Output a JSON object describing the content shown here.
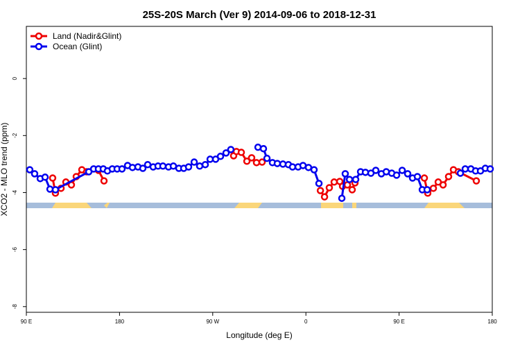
{
  "chart_data": {
    "type": "line",
    "title": "25S-20S March (Ver 9)   2014-09-06 to 2018-12-31",
    "x_label": "Longitude (deg E)",
    "y_label": "XCO2 - MLO trend (ppm)",
    "xlim": [
      90,
      540
    ],
    "ylim": [
      -8.2,
      1.83
    ],
    "xticks": [
      {
        "value": 90,
        "label": "90 E"
      },
      {
        "value": 180,
        "label": "180"
      },
      {
        "value": 270,
        "label": "90 W"
      },
      {
        "value": 360,
        "label": "0"
      },
      {
        "value": 450,
        "label": "90 E"
      },
      {
        "value": 540,
        "label": "180"
      }
    ],
    "yticks": [
      0,
      -2,
      -4,
      -6,
      -8
    ],
    "grid": false,
    "legend": "top-left",
    "series": [
      {
        "name": "Land (Nadir&Glint)",
        "color": "#ee0000",
        "x": [
          115.4,
          118.1,
          123.5,
          128.2,
          133.5,
          138.2,
          143.6,
          148.3,
          159.6,
          165.0,
          null,
          290.2,
          292.9,
          297.6,
          303.0,
          307.6,
          312.3,
          317.7,
          null,
          374.0,
          378.0,
          382.6,
          387.3,
          392.7,
          395.4,
          400.1,
          404.7,
          407.4,
          null,
          474.4,
          477.7,
          483.1,
          487.8,
          492.5,
          497.8,
          502.5,
          507.2,
          524.6
        ],
        "values": [
          -3.49,
          -4.02,
          -3.85,
          -3.63,
          -3.73,
          -3.44,
          -3.2,
          -3.27,
          -3.22,
          -3.59,
          null,
          -2.71,
          -2.56,
          -2.59,
          -2.9,
          -2.78,
          -2.95,
          -2.93,
          null,
          -3.93,
          -4.15,
          -3.83,
          -3.63,
          -3.61,
          -3.78,
          -3.73,
          -3.9,
          -3.66,
          null,
          -3.49,
          -4.02,
          -3.85,
          -3.63,
          -3.73,
          -3.44,
          -3.2,
          -3.27,
          -3.59
        ]
      },
      {
        "name": "Ocean (Glint)",
        "color": "#0000ee",
        "x": [
          93.3,
          98.0,
          103.4,
          108.1,
          112.8,
          118.1,
          150.3,
          155.0,
          159.6,
          164.3,
          168.3,
          173.0,
          177.7,
          182.4,
          187.8,
          192.5,
          197.8,
          202.5,
          207.2,
          212.5,
          217.2,
          221.9,
          227.3,
          232.0,
          237.3,
          242.0,
          246.7,
          252.1,
          257.4,
          262.8,
          267.5,
          272.8,
          277.5,
          282.9,
          287.5,
          null,
          313.7,
          319.0,
          322.4,
          327.7,
          332.4,
          337.8,
          343.1,
          347.1,
          352.5,
          357.2,
          362.5,
          367.9,
          372.6,
          null,
          394.7,
          398.0,
          402.1,
          408.1,
          412.8,
          417.5,
          422.8,
          427.5,
          432.9,
          437.6,
          442.9,
          447.6,
          453.0,
          458.3,
          463.0,
          467.7,
          472.4,
          477.1,
          null,
          509.2,
          513.9,
          519.3,
          523.9,
          528.6,
          533.3,
          538.0
        ],
        "values": [
          -3.2,
          -3.34,
          -3.51,
          -3.46,
          -3.88,
          -3.9,
          -3.27,
          -3.17,
          -3.17,
          -3.17,
          -3.24,
          -3.17,
          -3.17,
          -3.17,
          -3.05,
          -3.12,
          -3.1,
          -3.15,
          -3.02,
          -3.1,
          -3.07,
          -3.07,
          -3.1,
          -3.07,
          -3.15,
          -3.15,
          -3.1,
          -2.93,
          -3.07,
          -3.02,
          -2.83,
          -2.83,
          -2.73,
          -2.61,
          -2.49,
          null,
          -2.41,
          -2.46,
          -2.8,
          -2.95,
          -2.98,
          -3.0,
          -3.02,
          -3.1,
          -3.1,
          -3.05,
          -3.12,
          -3.2,
          -3.68,
          null,
          -4.2,
          -3.34,
          -3.54,
          -3.54,
          -3.27,
          -3.29,
          -3.32,
          -3.22,
          -3.34,
          -3.27,
          -3.32,
          -3.39,
          -3.22,
          -3.34,
          -3.49,
          -3.44,
          -3.9,
          -3.9,
          null,
          -3.32,
          -3.17,
          -3.17,
          -3.24,
          -3.24,
          -3.15,
          -3.17
        ]
      }
    ]
  }
}
